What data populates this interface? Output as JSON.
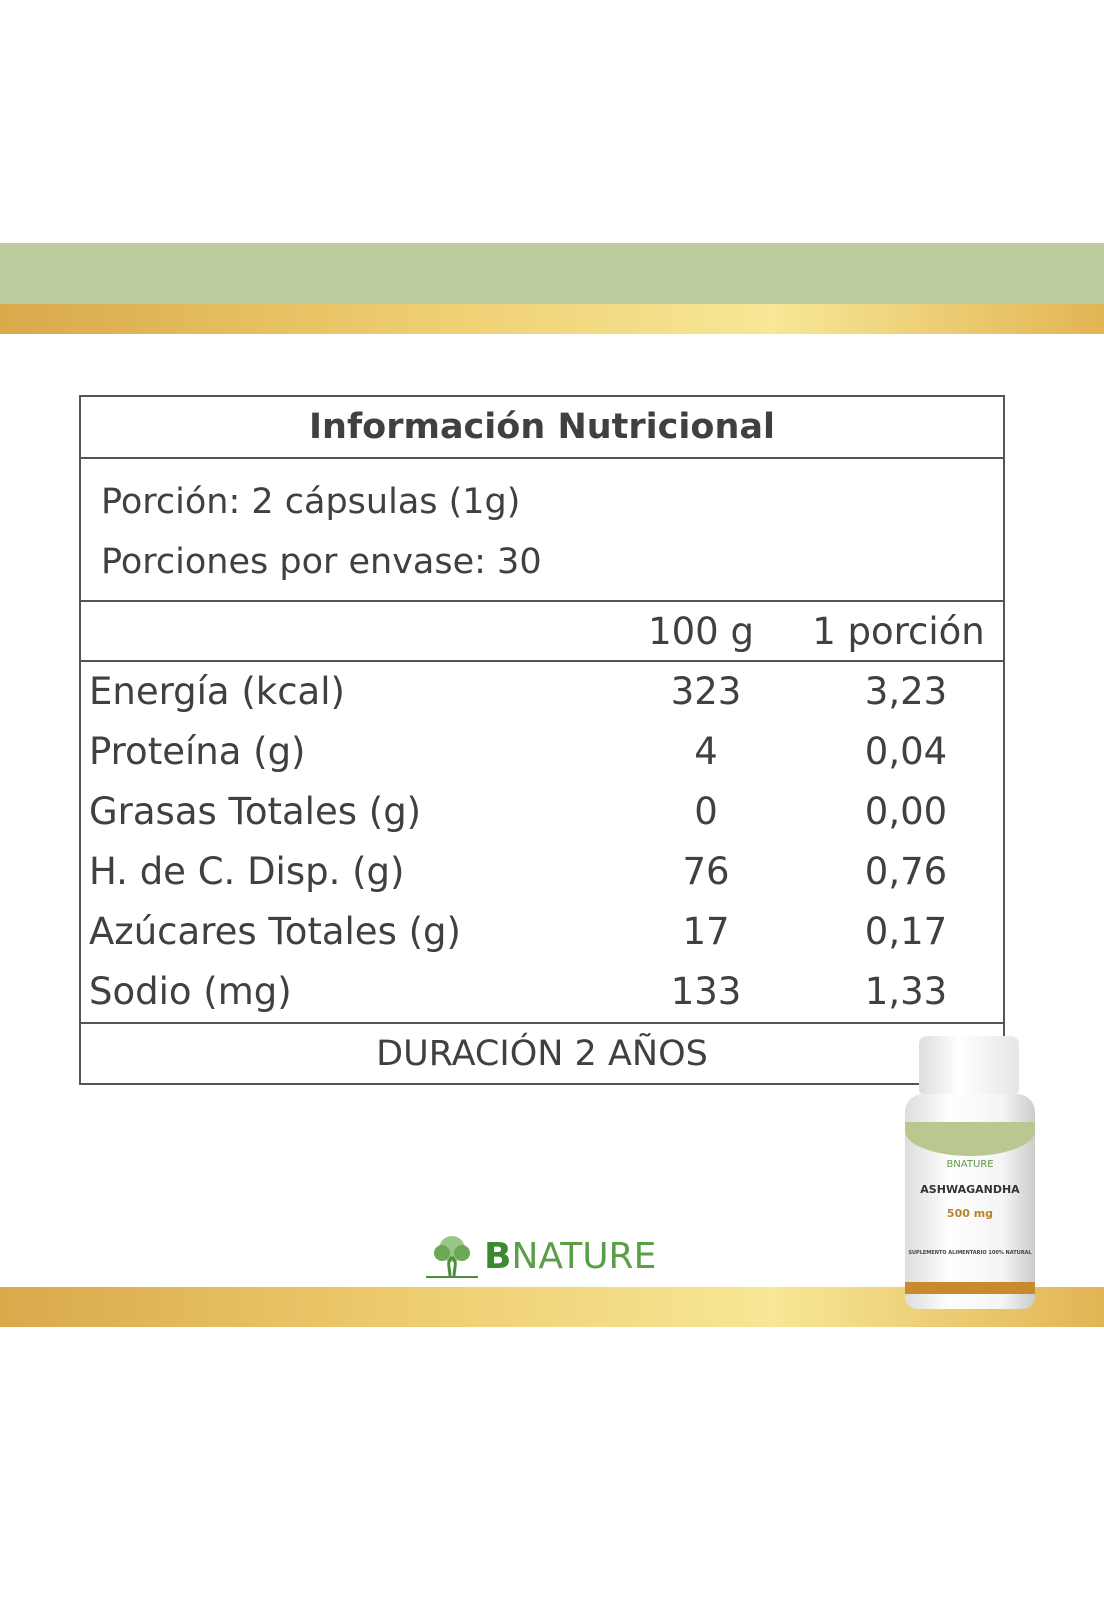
{
  "table": {
    "title": "Información Nutricional",
    "serving": "Porción: 2 cápsulas (1g)",
    "servings_per_container": "Porciones por envase: 30",
    "columns": [
      "100 g",
      "1 porción"
    ],
    "rows": [
      {
        "label": "Energía (kcal)",
        "per100": "323",
        "perServing": "3,23"
      },
      {
        "label": "Proteína (g)",
        "per100": "4",
        "perServing": "0,04"
      },
      {
        "label": "Grasas Totales (g)",
        "per100": "0",
        "perServing": "0,00"
      },
      {
        "label": "H. de C. Disp. (g)",
        "per100": "76",
        "perServing": "0,76"
      },
      {
        "label": "Azúcares Totales (g)",
        "per100": "17",
        "perServing": "0,17"
      },
      {
        "label": "Sodio (mg)",
        "per100": "133",
        "perServing": "1,33"
      }
    ],
    "footer": "DURACIÓN 2 AÑOS"
  },
  "logo": {
    "initial": "B",
    "rest": "NATURE"
  },
  "bottle": {
    "brand": "BNATURE",
    "product": "ASHWAGANDHA",
    "dose": "500 mg",
    "subtitle": "SUPLEMENTO ALIMENTARIO 100% NATURAL"
  },
  "colors": {
    "green_band": "#bccc9e",
    "gold_band": "#efcf73",
    "brand_green": "#5a9e4a"
  }
}
